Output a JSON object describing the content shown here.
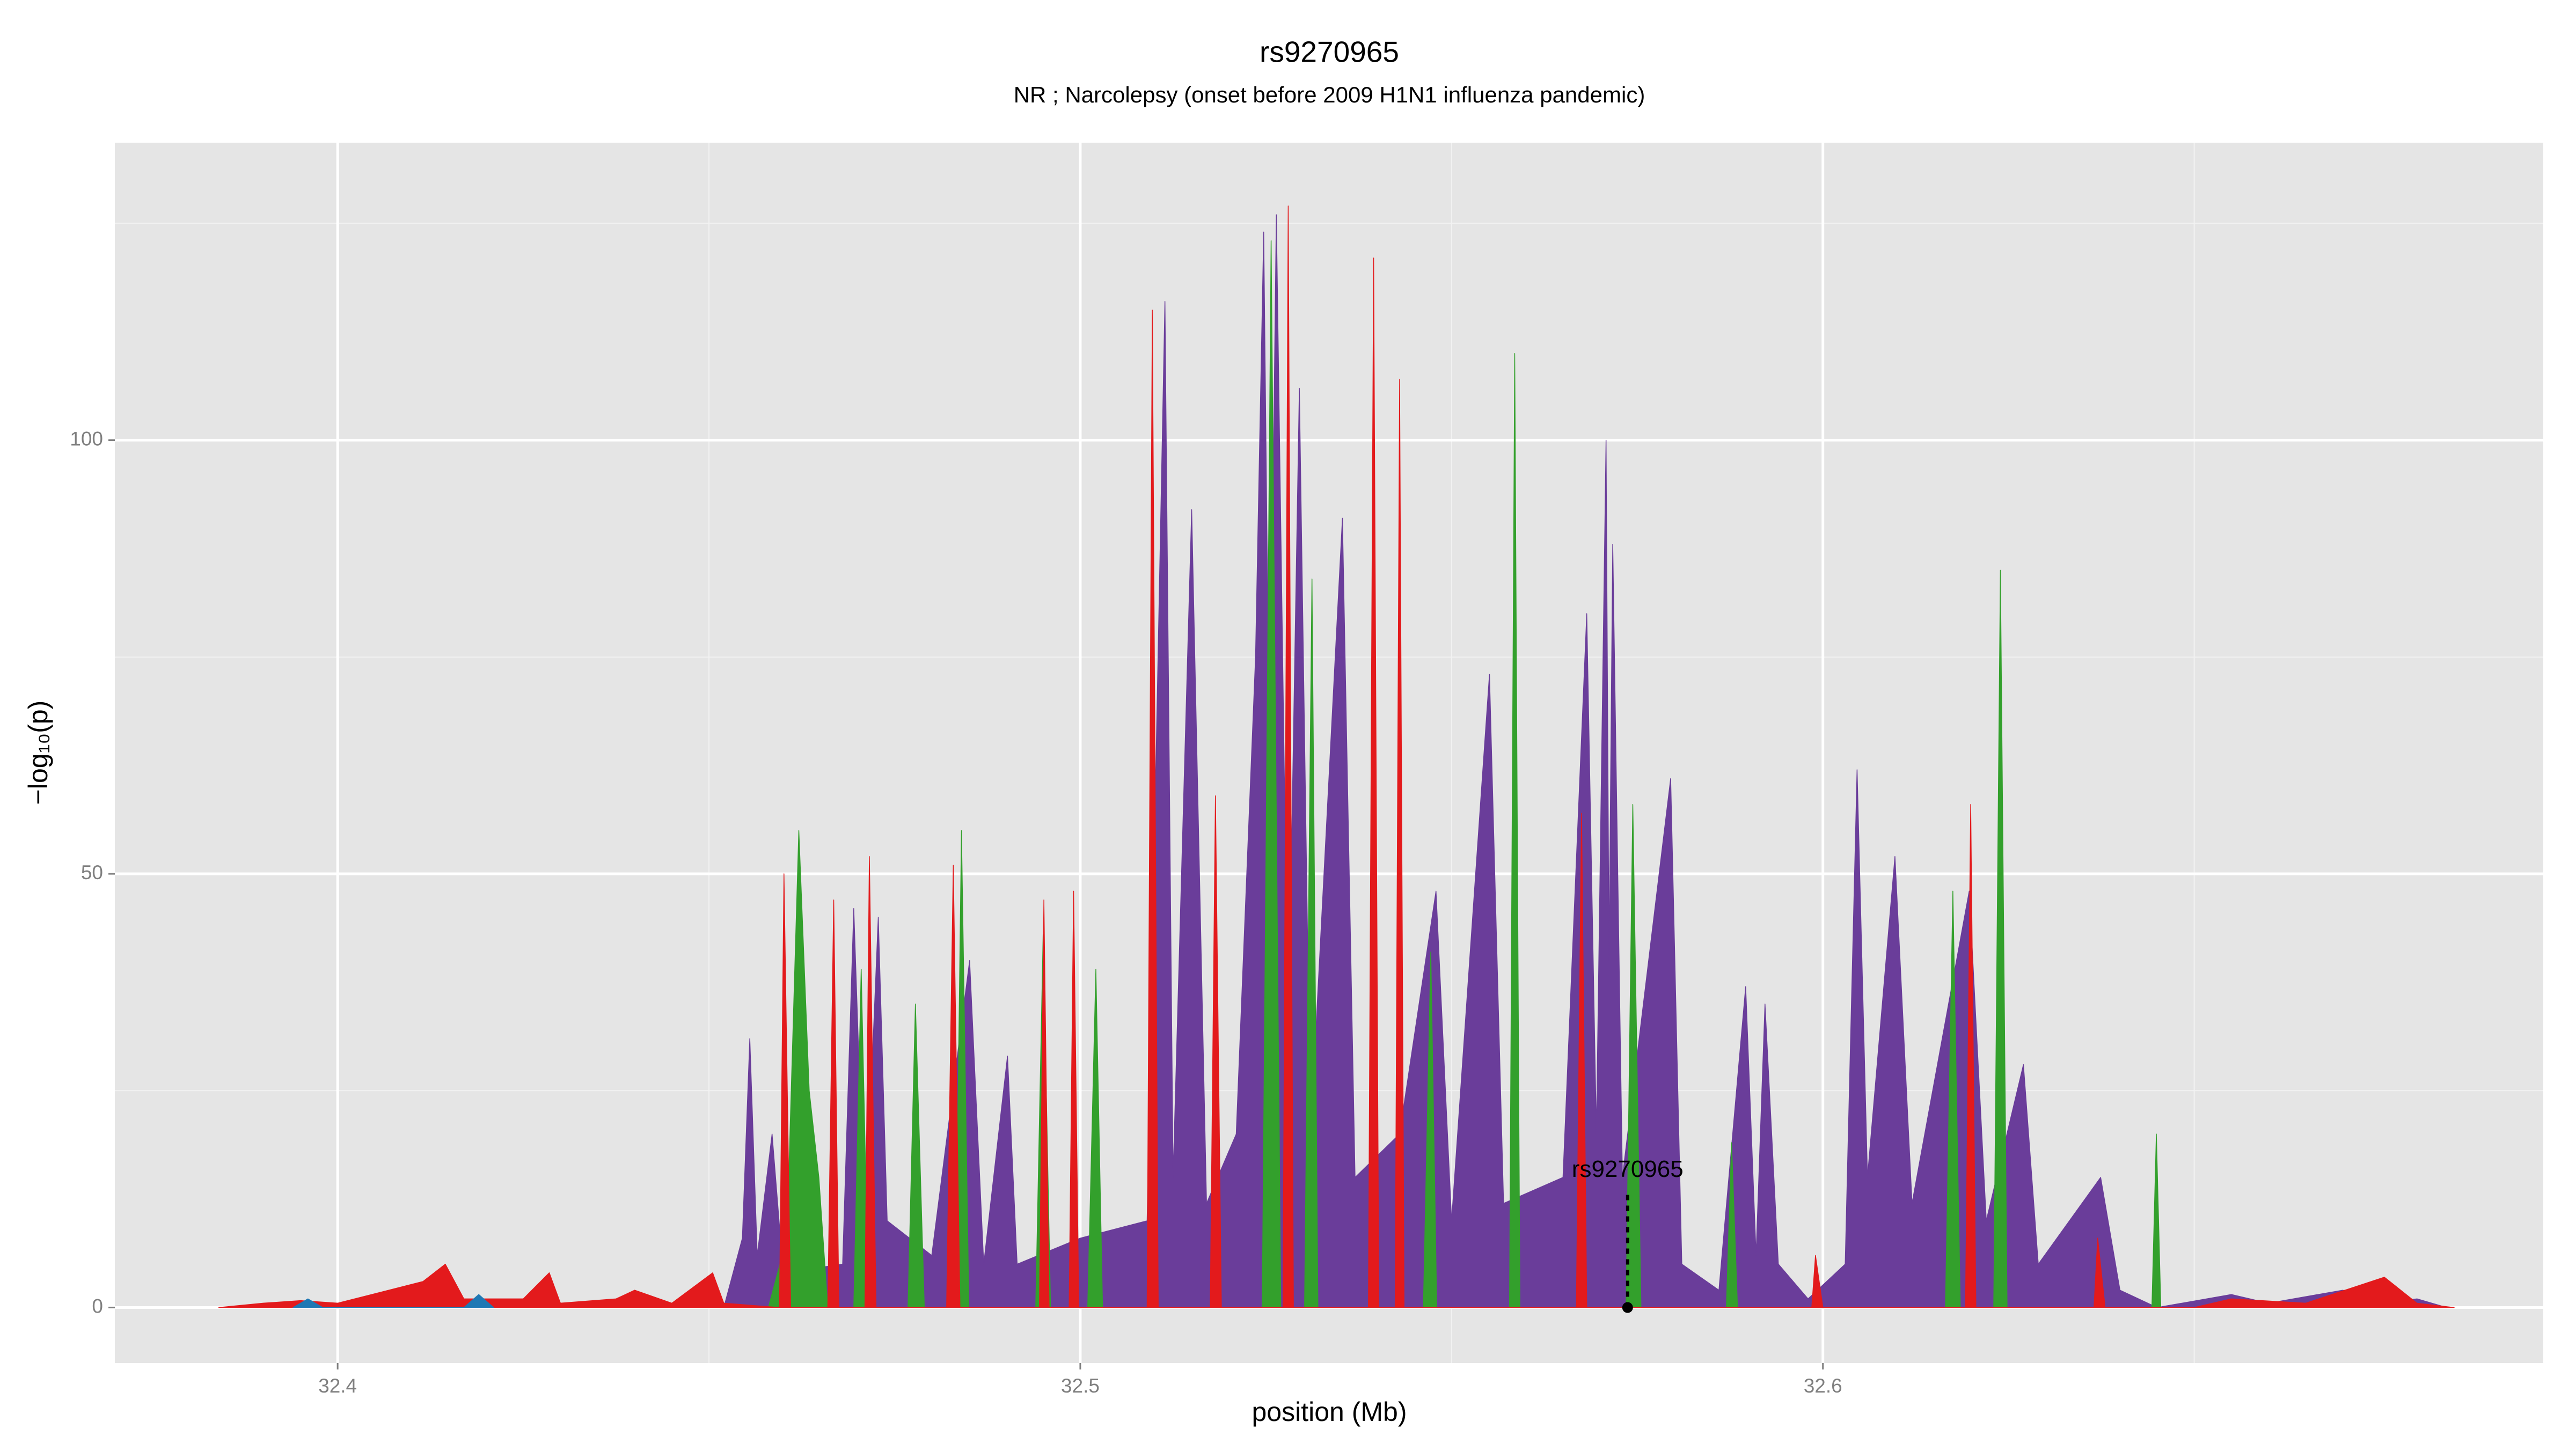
{
  "chart_data": {
    "type": "area",
    "title": "rs9270965",
    "subtitle": "NR ; Narcolepsy (onset before 2009 H1N1 influenza pandemic)",
    "x_label": "position (Mb)",
    "y_label": "−log₁₀(p)",
    "xlim": [
      32.37,
      32.697
    ],
    "ylim": [
      -6.4,
      134.3
    ],
    "xticks": [
      32.4,
      32.5,
      32.6
    ],
    "yticks": [
      0,
      50,
      100
    ],
    "x_minor_ticks": [
      32.45,
      32.55,
      32.65
    ],
    "y_minor_ticks": [
      25,
      75,
      125
    ],
    "grid": true,
    "annotation": {
      "label": "rs9270965",
      "x": 32.5737,
      "y": 0
    },
    "series": [
      {
        "color": "#6a3d9a",
        "x": [
          32.452,
          32.4545,
          32.4555,
          32.4565,
          32.4585,
          32.46,
          32.468,
          32.4695,
          32.471,
          32.4728,
          32.474,
          32.48,
          32.4851,
          32.487,
          32.4902,
          32.4915,
          32.5,
          32.509,
          32.5114,
          32.5125,
          32.515,
          32.517,
          32.521,
          32.5236,
          32.5247,
          32.5255,
          32.5264,
          32.528,
          32.5295,
          32.531,
          32.5353,
          32.537,
          32.543,
          32.5479,
          32.55,
          32.5551,
          32.557,
          32.565,
          32.5682,
          32.5695,
          32.5708,
          32.5712,
          32.5717,
          32.573,
          32.5795,
          32.581,
          32.586,
          32.5896,
          32.591,
          32.5922,
          32.594,
          32.598,
          32.603,
          32.6046,
          32.606,
          32.6097,
          32.612,
          32.6197,
          32.622,
          32.627,
          32.629,
          32.6374,
          32.64,
          32.645,
          32.655,
          32.66,
          32.67,
          32.675,
          32.68,
          32.684
        ],
        "values": [
          0,
          8,
          31,
          6,
          20,
          4,
          5,
          46,
          8,
          45,
          10,
          6,
          40,
          5,
          29,
          5,
          8,
          10,
          116,
          15,
          92,
          12,
          20,
          75,
          124,
          60,
          126,
          30,
          106,
          20,
          91,
          15,
          20,
          48,
          10,
          73,
          12,
          15,
          80,
          20,
          100,
          40,
          88,
          15,
          61,
          5,
          2,
          37,
          6,
          35,
          5,
          1,
          5,
          62,
          15,
          52,
          12,
          48,
          10,
          28,
          5,
          15,
          2,
          0,
          1.5,
          0.5,
          2,
          0.5,
          1,
          0
        ]
      },
      {
        "color": "#33a02c",
        "x": [
          32.458,
          32.4605,
          32.4621,
          32.4635,
          32.4648,
          32.466,
          32.4695,
          32.4705,
          32.4715,
          32.4768,
          32.4778,
          32.479,
          32.4832,
          32.484,
          32.485,
          32.494,
          32.495,
          32.496,
          32.501,
          32.5021,
          32.503,
          32.5245,
          32.5257,
          32.527,
          32.5302,
          32.5312,
          32.532,
          32.5462,
          32.5472,
          32.548,
          32.5578,
          32.5585,
          32.5592,
          32.5735,
          32.5744,
          32.5755,
          32.587,
          32.5877,
          32.5885,
          32.6165,
          32.6175,
          32.6185,
          32.623,
          32.6239,
          32.6248,
          32.6443,
          32.6449,
          32.6455
        ],
        "values": [
          0,
          8,
          55,
          25,
          15,
          0,
          0,
          39,
          0,
          0,
          35,
          0,
          0,
          55,
          0,
          0,
          43,
          0,
          0,
          39,
          0,
          0,
          123,
          0,
          0,
          84,
          0,
          0,
          41,
          0,
          0,
          110,
          0,
          0,
          58,
          0,
          0,
          19,
          0,
          0,
          48,
          0,
          0,
          85,
          0,
          0,
          20,
          0
        ]
      },
      {
        "color": "#e31a1c",
        "x": [
          32.384,
          32.39,
          32.395,
          32.4,
          32.4115,
          32.4145,
          32.417,
          32.425,
          32.4285,
          32.43,
          32.4375,
          32.44,
          32.445,
          32.4505,
          32.452,
          32.4595,
          32.4601,
          32.461,
          32.466,
          32.4668,
          32.4675,
          32.471,
          32.4716,
          32.4725,
          32.482,
          32.4829,
          32.4838,
          32.4945,
          32.4951,
          32.4958,
          32.4985,
          32.4991,
          32.4998,
          32.509,
          32.5097,
          32.5105,
          32.5175,
          32.5182,
          32.519,
          32.5273,
          32.528,
          32.5287,
          32.5388,
          32.5395,
          32.5402,
          32.5424,
          32.543,
          32.5436,
          32.5668,
          32.5675,
          32.5682,
          32.5985,
          32.599,
          32.6,
          32.6192,
          32.6199,
          32.6206,
          32.6365,
          32.637,
          32.638,
          32.65,
          32.655,
          32.665,
          32.6756,
          32.68,
          32.685
        ],
        "values": [
          0,
          0.5,
          0.8,
          0.5,
          3,
          5,
          1,
          1,
          4,
          0.5,
          1,
          2,
          0.5,
          4,
          0.5,
          0,
          50,
          0,
          0,
          47,
          0,
          0,
          52,
          0,
          0,
          51,
          0,
          0,
          47,
          0,
          0,
          48,
          0,
          0,
          115,
          0,
          0,
          59,
          0,
          0,
          127,
          0,
          0,
          121,
          0,
          0,
          107,
          0,
          0,
          57,
          0,
          0,
          6,
          0,
          0,
          58,
          0,
          0,
          8,
          0,
          0,
          1,
          0.5,
          3.5,
          0.5,
          0
        ]
      },
      {
        "color": "#1f78b4",
        "x": [
          32.394,
          32.396,
          32.398,
          32.417,
          32.419,
          32.421
        ],
        "values": [
          0,
          1,
          0,
          0,
          1.5,
          0
        ]
      }
    ]
  }
}
